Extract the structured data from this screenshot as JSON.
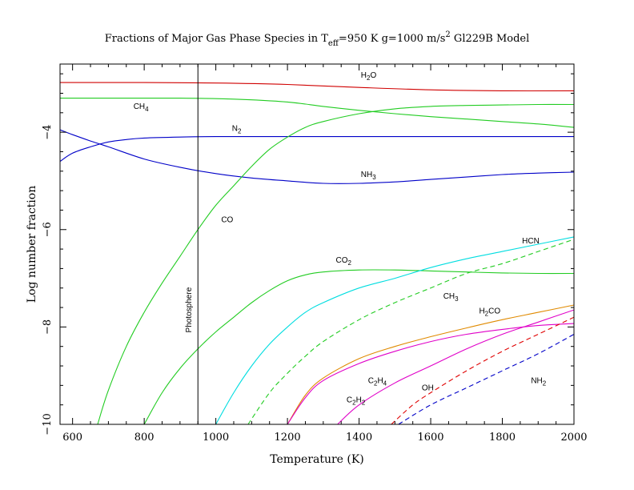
{
  "chart_data": {
    "type": "line",
    "title": {
      "pre": "Fractions of Major Gas Phase Species in T",
      "sub": "eff",
      "mid": "=950 K  g=1000 m/s",
      "sup": "2",
      "post": " Gl229B Model"
    },
    "xlabel": "Temperature (K)",
    "ylabel": "Log number fraction",
    "xlim": [
      565,
      2000
    ],
    "ylim": [
      -10,
      -2.6
    ],
    "xticks": [
      {
        "v": 600,
        "label": "600"
      },
      {
        "v": 800,
        "label": "800"
      },
      {
        "v": 1000,
        "label": "1000"
      },
      {
        "v": 1200,
        "label": "1200"
      },
      {
        "v": 1400,
        "label": "1400"
      },
      {
        "v": 1600,
        "label": "1600"
      },
      {
        "v": 1800,
        "label": "1800"
      },
      {
        "v": 2000,
        "label": "2000"
      }
    ],
    "yticks": [
      {
        "v": -4,
        "label": "−4"
      },
      {
        "v": -6,
        "label": "−6"
      },
      {
        "v": -8,
        "label": "−8"
      },
      {
        "v": -10,
        "label": "−10"
      }
    ],
    "photosphere": {
      "x": 950,
      "label": "Photosphere"
    },
    "series": [
      {
        "name": "H2O",
        "color": "#d00000",
        "dash": false,
        "points": [
          [
            565,
            -2.98
          ],
          [
            800,
            -2.98
          ],
          [
            1000,
            -2.99
          ],
          [
            1200,
            -3.02
          ],
          [
            1400,
            -3.08
          ],
          [
            1600,
            -3.13
          ],
          [
            1800,
            -3.15
          ],
          [
            2000,
            -3.15
          ]
        ]
      },
      {
        "name": "CH4",
        "color": "#22cc22",
        "dash": false,
        "points": [
          [
            565,
            -3.3
          ],
          [
            700,
            -3.3
          ],
          [
            900,
            -3.3
          ],
          [
            1050,
            -3.32
          ],
          [
            1200,
            -3.38
          ],
          [
            1300,
            -3.47
          ],
          [
            1400,
            -3.55
          ],
          [
            1500,
            -3.62
          ],
          [
            1600,
            -3.68
          ],
          [
            1700,
            -3.73
          ],
          [
            1800,
            -3.78
          ],
          [
            1900,
            -3.83
          ],
          [
            2000,
            -3.9
          ]
        ]
      },
      {
        "name": "N2",
        "color": "#0000c8",
        "dash": false,
        "points": [
          [
            565,
            -4.6
          ],
          [
            600,
            -4.43
          ],
          [
            650,
            -4.3
          ],
          [
            700,
            -4.2
          ],
          [
            750,
            -4.15
          ],
          [
            800,
            -4.12
          ],
          [
            900,
            -4.1
          ],
          [
            1000,
            -4.09
          ],
          [
            1200,
            -4.09
          ],
          [
            1400,
            -4.09
          ],
          [
            1600,
            -4.09
          ],
          [
            1800,
            -4.09
          ],
          [
            2000,
            -4.09
          ]
        ]
      },
      {
        "name": "NH3",
        "color": "#0000c8",
        "dash": false,
        "points": [
          [
            565,
            -3.95
          ],
          [
            600,
            -4.05
          ],
          [
            650,
            -4.18
          ],
          [
            700,
            -4.3
          ],
          [
            800,
            -4.55
          ],
          [
            900,
            -4.72
          ],
          [
            1000,
            -4.85
          ],
          [
            1100,
            -4.94
          ],
          [
            1200,
            -5.0
          ],
          [
            1300,
            -5.05
          ],
          [
            1400,
            -5.05
          ],
          [
            1500,
            -5.02
          ],
          [
            1600,
            -4.97
          ],
          [
            1700,
            -4.92
          ],
          [
            1800,
            -4.87
          ],
          [
            1900,
            -4.84
          ],
          [
            2000,
            -4.82
          ]
        ]
      },
      {
        "name": "CO",
        "color": "#22cc22",
        "dash": false,
        "points": [
          [
            670,
            -10.0
          ],
          [
            700,
            -9.3
          ],
          [
            750,
            -8.4
          ],
          [
            800,
            -7.7
          ],
          [
            850,
            -7.1
          ],
          [
            900,
            -6.55
          ],
          [
            950,
            -6.0
          ],
          [
            1000,
            -5.5
          ],
          [
            1050,
            -5.1
          ],
          [
            1100,
            -4.7
          ],
          [
            1150,
            -4.35
          ],
          [
            1200,
            -4.1
          ],
          [
            1250,
            -3.9
          ],
          [
            1300,
            -3.78
          ],
          [
            1400,
            -3.62
          ],
          [
            1500,
            -3.52
          ],
          [
            1600,
            -3.47
          ],
          [
            1700,
            -3.45
          ],
          [
            1800,
            -3.44
          ],
          [
            1900,
            -3.43
          ],
          [
            2000,
            -3.43
          ]
        ]
      },
      {
        "name": "CO2",
        "color": "#22cc22",
        "dash": false,
        "points": [
          [
            800,
            -10.0
          ],
          [
            850,
            -9.35
          ],
          [
            900,
            -8.85
          ],
          [
            950,
            -8.45
          ],
          [
            1000,
            -8.1
          ],
          [
            1050,
            -7.8
          ],
          [
            1100,
            -7.5
          ],
          [
            1150,
            -7.25
          ],
          [
            1200,
            -7.05
          ],
          [
            1250,
            -6.93
          ],
          [
            1300,
            -6.87
          ],
          [
            1400,
            -6.83
          ],
          [
            1500,
            -6.83
          ],
          [
            1600,
            -6.85
          ],
          [
            1700,
            -6.87
          ],
          [
            1800,
            -6.89
          ],
          [
            1900,
            -6.9
          ],
          [
            2000,
            -6.9
          ]
        ]
      },
      {
        "name": "HCN",
        "color": "#00dde0",
        "dash": false,
        "points": [
          [
            1000,
            -10.0
          ],
          [
            1050,
            -9.35
          ],
          [
            1100,
            -8.8
          ],
          [
            1150,
            -8.35
          ],
          [
            1200,
            -8.0
          ],
          [
            1250,
            -7.7
          ],
          [
            1300,
            -7.5
          ],
          [
            1400,
            -7.2
          ],
          [
            1500,
            -7.0
          ],
          [
            1600,
            -6.78
          ],
          [
            1700,
            -6.6
          ],
          [
            1800,
            -6.45
          ],
          [
            1900,
            -6.3
          ],
          [
            2000,
            -6.15
          ]
        ]
      },
      {
        "name": "CH3",
        "color": "#22cc22",
        "dash": true,
        "points": [
          [
            1090,
            -10.0
          ],
          [
            1150,
            -9.35
          ],
          [
            1200,
            -8.95
          ],
          [
            1250,
            -8.6
          ],
          [
            1300,
            -8.3
          ],
          [
            1400,
            -7.85
          ],
          [
            1500,
            -7.5
          ],
          [
            1600,
            -7.2
          ],
          [
            1700,
            -6.9
          ],
          [
            1800,
            -6.7
          ],
          [
            1900,
            -6.45
          ],
          [
            2000,
            -6.2
          ]
        ]
      },
      {
        "name": "H2CO",
        "color": "#e08a00",
        "dash": false,
        "points": [
          [
            1200,
            -10.0
          ],
          [
            1250,
            -9.4
          ],
          [
            1300,
            -9.05
          ],
          [
            1400,
            -8.65
          ],
          [
            1500,
            -8.4
          ],
          [
            1600,
            -8.2
          ],
          [
            1700,
            -8.02
          ],
          [
            1800,
            -7.85
          ],
          [
            1900,
            -7.7
          ],
          [
            2000,
            -7.55
          ]
        ]
      },
      {
        "name": "C2H4",
        "color": "#e000c8",
        "dash": false,
        "points": [
          [
            1200,
            -10.0
          ],
          [
            1250,
            -9.45
          ],
          [
            1300,
            -9.1
          ],
          [
            1400,
            -8.75
          ],
          [
            1500,
            -8.5
          ],
          [
            1600,
            -8.3
          ],
          [
            1700,
            -8.15
          ],
          [
            1800,
            -8.05
          ],
          [
            1900,
            -7.97
          ],
          [
            2000,
            -7.93
          ]
        ]
      },
      {
        "name": "C2H2",
        "color": "#e000c8",
        "dash": false,
        "points": [
          [
            1340,
            -10.0
          ],
          [
            1400,
            -9.6
          ],
          [
            1500,
            -9.15
          ],
          [
            1600,
            -8.8
          ],
          [
            1700,
            -8.45
          ],
          [
            1800,
            -8.15
          ],
          [
            1900,
            -7.9
          ],
          [
            2000,
            -7.65
          ]
        ]
      },
      {
        "name": "OH",
        "color": "#e00000",
        "dash": true,
        "points": [
          [
            1490,
            -10.0
          ],
          [
            1550,
            -9.6
          ],
          [
            1600,
            -9.35
          ],
          [
            1700,
            -8.9
          ],
          [
            1800,
            -8.5
          ],
          [
            1900,
            -8.15
          ],
          [
            2000,
            -7.8
          ]
        ]
      },
      {
        "name": "NH2",
        "color": "#0000c8",
        "dash": true,
        "points": [
          [
            1510,
            -10.0
          ],
          [
            1600,
            -9.6
          ],
          [
            1700,
            -9.25
          ],
          [
            1800,
            -8.9
          ],
          [
            1900,
            -8.55
          ],
          [
            2000,
            -8.15
          ]
        ]
      }
    ],
    "curve_labels": [
      {
        "series": "H2O",
        "base": "H",
        "sub": "2",
        "tail": "O",
        "x": 1405,
        "y": -2.88
      },
      {
        "series": "CH4",
        "base": "CH",
        "sub": "4",
        "tail": "",
        "x": 770,
        "y": -3.52
      },
      {
        "series": "N2",
        "base": "N",
        "sub": "2",
        "tail": "",
        "x": 1045,
        "y": -3.97
      },
      {
        "series": "NH3",
        "base": "NH",
        "sub": "3",
        "tail": "",
        "x": 1405,
        "y": -4.92
      },
      {
        "series": "CO",
        "base": "CO",
        "sub": "",
        "tail": "",
        "x": 1015,
        "y": -5.85
      },
      {
        "series": "HCN",
        "base": "HCN",
        "sub": "",
        "tail": "",
        "x": 1855,
        "y": -6.28
      },
      {
        "series": "CO2",
        "base": "CO",
        "sub": "2",
        "tail": "",
        "x": 1335,
        "y": -6.68
      },
      {
        "series": "CH3",
        "base": "CH",
        "sub": "3",
        "tail": "",
        "x": 1635,
        "y": -7.42
      },
      {
        "series": "H2CO",
        "base": "H",
        "sub": "2",
        "tail": "CO",
        "x": 1735,
        "y": -7.72
      },
      {
        "series": "C2H4",
        "base": "C",
        "sub": "2",
        "tail": "H",
        "sub2": "4",
        "x": 1425,
        "y": -9.15
      },
      {
        "series": "C2H2",
        "base": "C",
        "sub": "2",
        "tail": "H",
        "sub2": "2",
        "x": 1365,
        "y": -9.55
      },
      {
        "series": "OH",
        "base": "OH",
        "sub": "",
        "tail": "",
        "x": 1575,
        "y": -9.3
      },
      {
        "series": "NH2",
        "base": "NH",
        "sub": "2",
        "tail": "",
        "x": 1880,
        "y": -9.15
      }
    ],
    "legend": "none",
    "grid": false
  }
}
